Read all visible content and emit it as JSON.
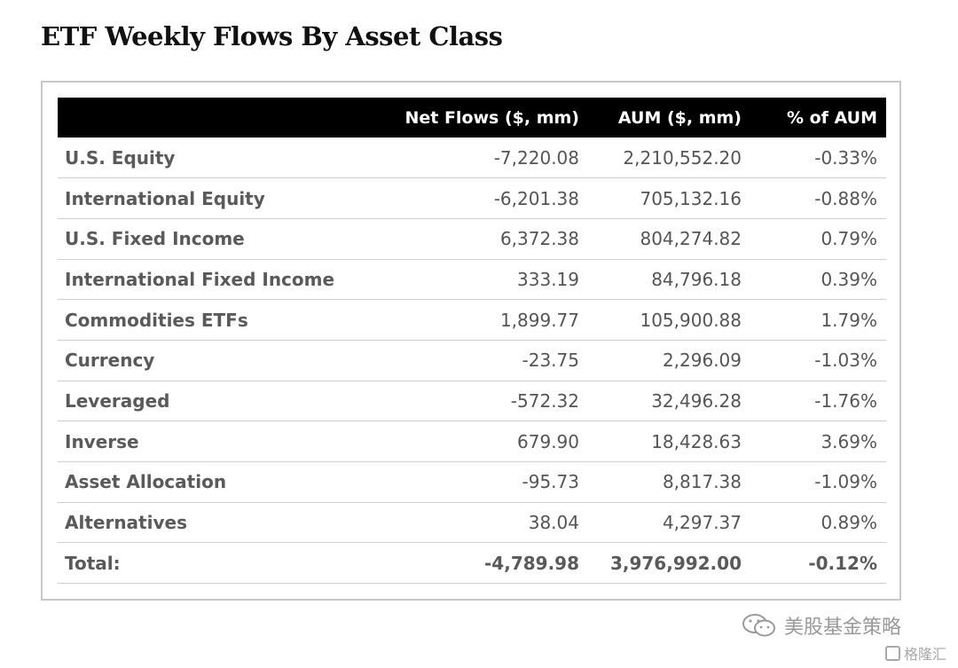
{
  "title": "ETF Weekly Flows By Asset Class",
  "chart_data": {
    "type": "table",
    "title": "ETF Weekly Flows By Asset Class",
    "columns": [
      "",
      "Net Flows ($, mm)",
      "AUM ($, mm)",
      "% of AUM"
    ],
    "rows": [
      {
        "label": "U.S. Equity",
        "net_flows": "-7,220.08",
        "aum": "2,210,552.20",
        "pct_aum": "-0.33%"
      },
      {
        "label": "International Equity",
        "net_flows": "-6,201.38",
        "aum": "705,132.16",
        "pct_aum": "-0.88%"
      },
      {
        "label": "U.S. Fixed Income",
        "net_flows": "6,372.38",
        "aum": "804,274.82",
        "pct_aum": "0.79%"
      },
      {
        "label": "International Fixed Income",
        "net_flows": "333.19",
        "aum": "84,796.18",
        "pct_aum": "0.39%"
      },
      {
        "label": "Commodities ETFs",
        "net_flows": "1,899.77",
        "aum": "105,900.88",
        "pct_aum": "1.79%"
      },
      {
        "label": "Currency",
        "net_flows": "-23.75",
        "aum": "2,296.09",
        "pct_aum": "-1.03%"
      },
      {
        "label": "Leveraged",
        "net_flows": "-572.32",
        "aum": "32,496.28",
        "pct_aum": "-1.76%"
      },
      {
        "label": "Inverse",
        "net_flows": "679.90",
        "aum": "18,428.63",
        "pct_aum": "3.69%"
      },
      {
        "label": "Asset Allocation",
        "net_flows": "-95.73",
        "aum": "8,817.38",
        "pct_aum": "-1.09%"
      },
      {
        "label": "Alternatives",
        "net_flows": "38.04",
        "aum": "4,297.37",
        "pct_aum": "0.89%"
      }
    ],
    "total": {
      "label": "Total:",
      "net_flows": "-4,789.98",
      "aum": "3,976,992.00",
      "pct_aum": "-0.12%"
    }
  },
  "watermark": {
    "text": "美股基金策略",
    "sub": "格隆汇",
    "icon": "wechat-icon"
  },
  "colors": {
    "header_bg": "#000000",
    "header_text": "#ffffff",
    "body_text": "#555555",
    "row_rule": "#cfcfcf",
    "frame": "#c8c8c8"
  }
}
